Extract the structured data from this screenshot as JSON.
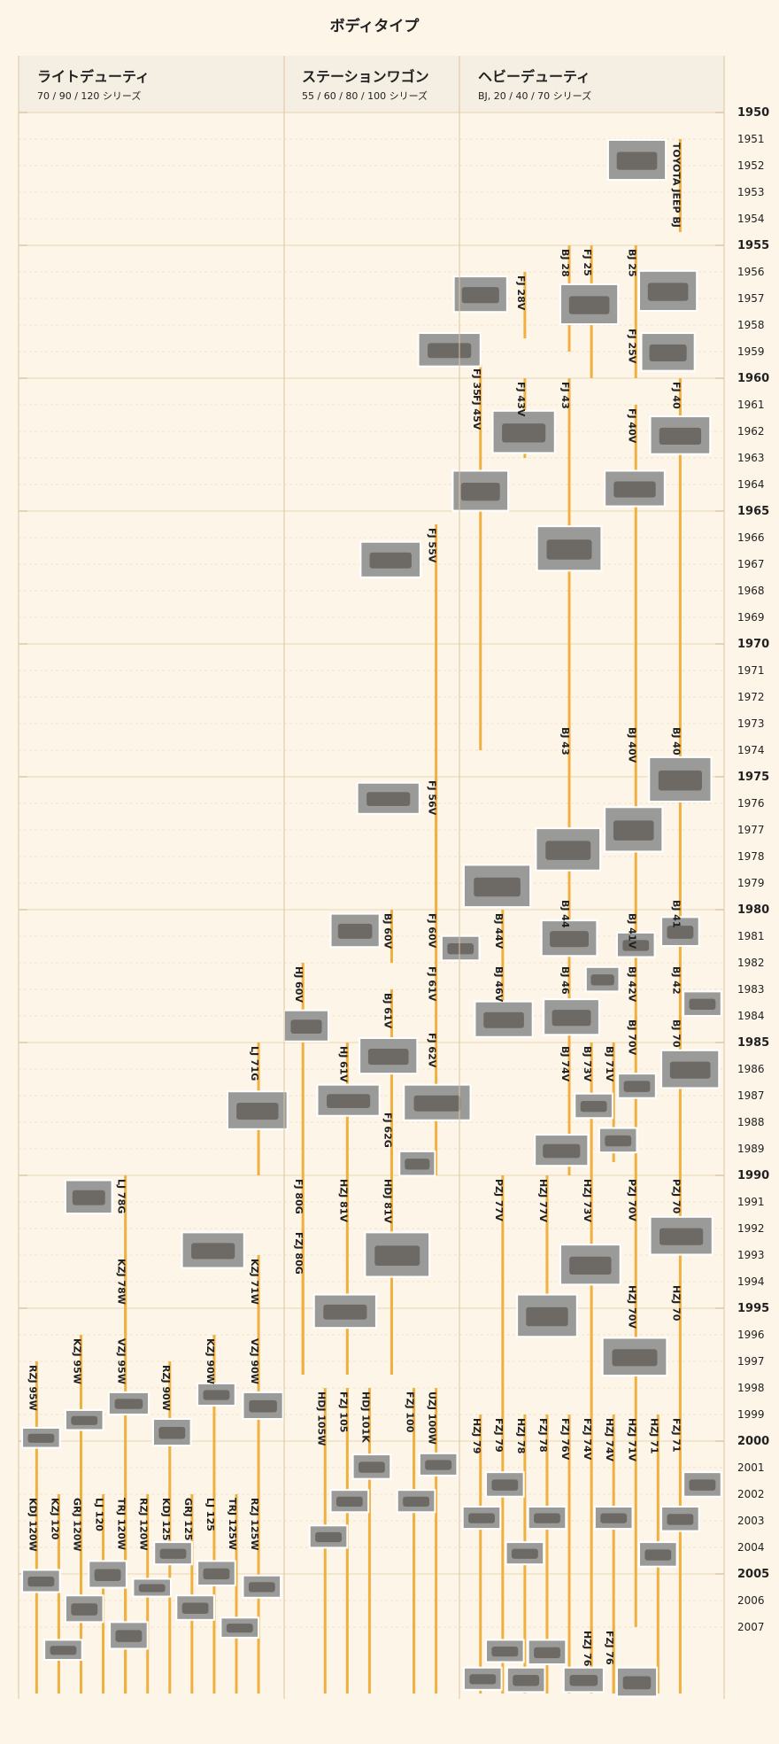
{
  "title": "ボディタイプ",
  "columns": [
    {
      "title": "ライトデューティ",
      "subtitle": "70 / 90 / 120 シリーズ"
    },
    {
      "title": "ステーションワゴン",
      "subtitle": "55 / 60 / 80 / 100 シリーズ"
    },
    {
      "title": "ヘビーデューティ",
      "subtitle": "BJ, 20 / 40 / 70 シリーズ"
    }
  ],
  "years": [
    1950,
    1951,
    1952,
    1953,
    1954,
    1955,
    1956,
    1957,
    1958,
    1959,
    1960,
    1961,
    1962,
    1963,
    1964,
    1965,
    1966,
    1967,
    1968,
    1969,
    1970,
    1971,
    1972,
    1973,
    1974,
    1975,
    1976,
    1977,
    1978,
    1979,
    1980,
    1981,
    1982,
    1983,
    1984,
    1985,
    1986,
    1987,
    1988,
    1989,
    1990,
    1991,
    1992,
    1993,
    1994,
    1995,
    1996,
    1997,
    1998,
    1999,
    2000,
    2001,
    2002,
    2003,
    2004,
    2005,
    2006,
    2007
  ],
  "models": [
    {
      "label": "TOYOTA JEEP BJ",
      "start": 1951,
      "end": 1954.5
    },
    {
      "label": "BJ 28",
      "start": 1955,
      "end": 1959
    },
    {
      "label": "FJ 25",
      "start": 1955,
      "end": 1960
    },
    {
      "label": "BJ 25",
      "start": 1955,
      "end": 1958
    },
    {
      "label": "FJ 28V",
      "start": 1956,
      "end": 1958.5
    },
    {
      "label": "FJ 25V",
      "start": 1958,
      "end": 1960
    },
    {
      "label": "FJ 35",
      "start": 1959.5,
      "end": 1960.5
    },
    {
      "label": "FJ 45V",
      "start": 1960.5,
      "end": 1974
    },
    {
      "label": "FJ 43V",
      "start": 1960,
      "end": 1963
    },
    {
      "label": "FJ 43",
      "start": 1960,
      "end": 1973
    },
    {
      "label": "FJ 40V",
      "start": 1961,
      "end": 1973
    },
    {
      "label": "FJ 40",
      "start": 1960,
      "end": 1973
    },
    {
      "label": "BJ 43",
      "start": 1973,
      "end": 1979.5
    },
    {
      "label": "BJ 40V",
      "start": 1973,
      "end": 1980
    },
    {
      "label": "BJ 40",
      "start": 1973,
      "end": 1979.5
    },
    {
      "label": "BJ 44V",
      "start": 1980,
      "end": 1982
    },
    {
      "label": "BJ 44",
      "start": 1979.5,
      "end": 1982
    },
    {
      "label": "BJ 41V",
      "start": 1980,
      "end": 1982
    },
    {
      "label": "BJ 41",
      "start": 1979.5,
      "end": 1982
    },
    {
      "label": "BJ 46V",
      "start": 1982,
      "end": 1984.5
    },
    {
      "label": "BJ 46",
      "start": 1982,
      "end": 1985
    },
    {
      "label": "BJ 42V",
      "start": 1982,
      "end": 1984.5
    },
    {
      "label": "BJ 42",
      "start": 1982,
      "end": 1984.5
    },
    {
      "label": "BJ 70V",
      "start": 1984,
      "end": 1990
    },
    {
      "label": "BJ 70",
      "start": 1984,
      "end": 1990
    },
    {
      "label": "BJ 74V",
      "start": 1985,
      "end": 1990
    },
    {
      "label": "BJ 73V",
      "start": 1985,
      "end": 1990
    },
    {
      "label": "BJ 71V",
      "start": 1985,
      "end": 1989.5
    },
    {
      "label": "PZJ 77V",
      "start": 1990,
      "end": 1999
    },
    {
      "label": "HZJ 77V",
      "start": 1990,
      "end": 1996
    },
    {
      "label": "HZJ 73V",
      "start": 1990,
      "end": 1999
    },
    {
      "label": "PZJ 70V",
      "start": 1990,
      "end": 1994
    },
    {
      "label": "PZJ 70",
      "start": 1990,
      "end": 1994
    },
    {
      "label": "HZJ 70V",
      "start": 1994,
      "end": 1999
    },
    {
      "label": "HZJ 70",
      "start": 1994,
      "end": 1999
    },
    {
      "label": "HZJ 79",
      "start": 1999,
      "end": 2009.5
    },
    {
      "label": "FZJ 79",
      "start": 1999,
      "end": 2009.5
    },
    {
      "label": "HZJ 78",
      "start": 1999,
      "end": 2009.5
    },
    {
      "label": "FZJ 78",
      "start": 1999,
      "end": 2009.5
    },
    {
      "label": "FZJ 76V",
      "start": 1999,
      "end": 2009.5
    },
    {
      "label": "FZJ 74V",
      "start": 1999,
      "end": 2009.5
    },
    {
      "label": "HZJ 74V",
      "start": 1999,
      "end": 2009.5
    },
    {
      "label": "HZJ 71V",
      "start": 1999,
      "end": 2007
    },
    {
      "label": "HZJ 71",
      "start": 1999,
      "end": 2009.5
    },
    {
      "label": "FZJ 71",
      "start": 1999,
      "end": 2009.5
    },
    {
      "label": "HZJ 76",
      "start": 2007,
      "end": 2009.5
    },
    {
      "label": "FZJ 76",
      "start": 2007,
      "end": 2009.5
    },
    {
      "label": "FJ 55V",
      "start": 1965.5,
      "end": 1980
    },
    {
      "label": "FJ 56V",
      "start": 1975,
      "end": 1980
    },
    {
      "label": "BJ 60V",
      "start": 1980,
      "end": 1982
    },
    {
      "label": "FJ 60V",
      "start": 1980,
      "end": 1982
    },
    {
      "label": "HJ 60V",
      "start": 1982,
      "end": 1990
    },
    {
      "label": "FJ 61V",
      "start": 1982,
      "end": 1984.5
    },
    {
      "label": "BJ 61V",
      "start": 1983,
      "end": 1990
    },
    {
      "label": "FJ 62V",
      "start": 1984.5,
      "end": 1990
    },
    {
      "label": "HJ 61V",
      "start": 1985,
      "end": 1990
    },
    {
      "label": "FJ 62G",
      "start": 1987.5,
      "end": 1990
    },
    {
      "label": "FJ 80G",
      "start": 1990,
      "end": 1997.5
    },
    {
      "label": "FZJ 80G",
      "start": 1992,
      "end": 1997.5
    },
    {
      "label": "HZJ 81V",
      "start": 1990,
      "end": 1997.5
    },
    {
      "label": "HDJ 81V",
      "start": 1990,
      "end": 1997.5
    },
    {
      "label": "HDJ 105W",
      "start": 1998,
      "end": 2009.5
    },
    {
      "label": "FZJ 105",
      "start": 1998,
      "end": 2009.5
    },
    {
      "label": "HDJ 101K",
      "start": 1998,
      "end": 2009.5
    },
    {
      "label": "FZJ 100",
      "start": 1998,
      "end": 2009.5
    },
    {
      "label": "UZJ 100W",
      "start": 1998,
      "end": 2009.5
    },
    {
      "label": "LJ 71G",
      "start": 1985,
      "end": 1990
    },
    {
      "label": "LJ 78G",
      "start": 1990,
      "end": 1996
    },
    {
      "label": "KZJ 78W",
      "start": 1993,
      "end": 1996
    },
    {
      "label": "KZJ 71W",
      "start": 1993,
      "end": 1996
    },
    {
      "label": "VZJ 95W",
      "start": 1996,
      "end": 2009.5
    },
    {
      "label": "KZJ 95W",
      "start": 1996,
      "end": 2002
    },
    {
      "label": "RZJ 95W",
      "start": 1997,
      "end": 2002
    },
    {
      "label": "RZJ 90W",
      "start": 1997,
      "end": 2002
    },
    {
      "label": "KZJ 90W",
      "start": 1996,
      "end": 2002
    },
    {
      "label": "VZJ 90W",
      "start": 1996,
      "end": 2002
    },
    {
      "label": "KDJ 120W",
      "start": 2002,
      "end": 2009.5
    },
    {
      "label": "KZJ 120",
      "start": 2002,
      "end": 2009.5
    },
    {
      "label": "GRJ 120W",
      "start": 2002,
      "end": 2009.5
    },
    {
      "label": "LJ 120",
      "start": 2002,
      "end": 2009.5
    },
    {
      "label": "TRJ 120W",
      "start": 2002,
      "end": 2009.5
    },
    {
      "label": "RZJ 120W",
      "start": 2002,
      "end": 2009.5
    },
    {
      "label": "KDJ 125",
      "start": 2002,
      "end": 2009.5
    },
    {
      "label": "GRJ 125",
      "start": 2002,
      "end": 2009.5
    },
    {
      "label": "LJ 125",
      "start": 2002,
      "end": 2009.5
    },
    {
      "label": "TRJ 125W",
      "start": 2002,
      "end": 2009.5
    },
    {
      "label": "RZJ 125W",
      "start": 2002,
      "end": 2009.5
    }
  ]
}
